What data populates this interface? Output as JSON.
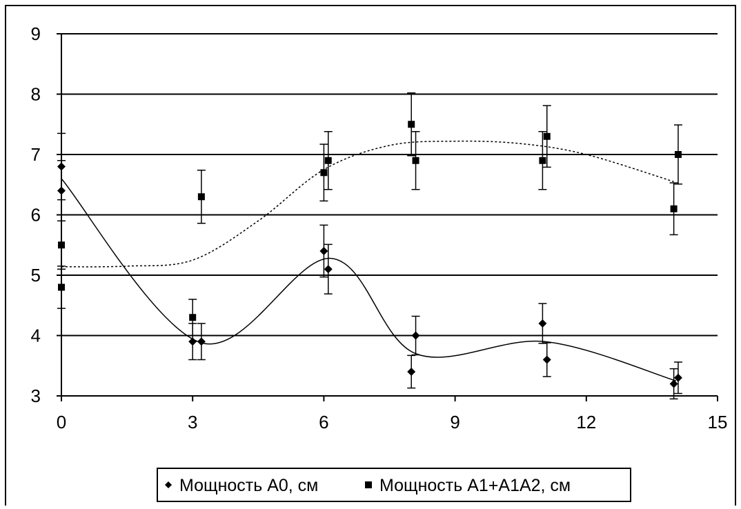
{
  "chart_data": {
    "type": "scatter",
    "title": "",
    "xlabel": "",
    "ylabel": "",
    "xlim": [
      0,
      15
    ],
    "ylim": [
      3,
      9
    ],
    "xticks": [
      "0",
      "3",
      "6",
      "9",
      "12",
      "15"
    ],
    "yticks": [
      "3",
      "4",
      "5",
      "6",
      "7",
      "8",
      "9"
    ],
    "grid": "horizontal",
    "legend_position": "bottom",
    "series": [
      {
        "name": "Мощность А0, см",
        "marker": "diamond",
        "trend_style": "solid",
        "color": "#000000",
        "points": [
          {
            "x": 0,
            "y": 6.8,
            "err": 0.55
          },
          {
            "x": 0,
            "y": 6.4,
            "err": 0.5
          },
          {
            "x": 3,
            "y": 3.9,
            "err": 0.3
          },
          {
            "x": 3.2,
            "y": 3.9,
            "err": 0.3
          },
          {
            "x": 6,
            "y": 5.4,
            "err": 0.43
          },
          {
            "x": 6.1,
            "y": 5.1,
            "err": 0.41
          },
          {
            "x": 8,
            "y": 3.4,
            "err": 0.27
          },
          {
            "x": 8.1,
            "y": 4.0,
            "err": 0.32
          },
          {
            "x": 11,
            "y": 4.2,
            "err": 0.33
          },
          {
            "x": 11.1,
            "y": 3.6,
            "err": 0.28
          },
          {
            "x": 14,
            "y": 3.2,
            "err": 0.25
          },
          {
            "x": 14.1,
            "y": 3.3,
            "err": 0.26
          }
        ],
        "trend": [
          {
            "x": 0,
            "y": 6.6
          },
          {
            "x": 3.2,
            "y": 3.88
          },
          {
            "x": 6.15,
            "y": 5.28
          },
          {
            "x": 8.1,
            "y": 3.7
          },
          {
            "x": 11.05,
            "y": 3.9
          },
          {
            "x": 14.05,
            "y": 3.25
          }
        ]
      },
      {
        "name": "Мощность А1+А1А2, см",
        "marker": "square",
        "trend_style": "dotted",
        "color": "#000000",
        "points": [
          {
            "x": 0,
            "y": 5.5,
            "err": 0.4
          },
          {
            "x": 0,
            "y": 4.8,
            "err": 0.35
          },
          {
            "x": 3,
            "y": 4.3,
            "err": 0.3
          },
          {
            "x": 3.2,
            "y": 6.3,
            "err": 0.44
          },
          {
            "x": 6,
            "y": 6.7,
            "err": 0.47
          },
          {
            "x": 6.1,
            "y": 6.9,
            "err": 0.48
          },
          {
            "x": 8,
            "y": 7.5,
            "err": 0.52
          },
          {
            "x": 8.1,
            "y": 6.9,
            "err": 0.48
          },
          {
            "x": 11,
            "y": 6.9,
            "err": 0.48
          },
          {
            "x": 11.1,
            "y": 7.3,
            "err": 0.51
          },
          {
            "x": 14,
            "y": 6.1,
            "err": 0.43
          },
          {
            "x": 14.1,
            "y": 7.0,
            "err": 0.49
          }
        ],
        "trend": [
          {
            "x": 0,
            "y": 5.14
          },
          {
            "x": 1.5,
            "y": 5.15
          },
          {
            "x": 3,
            "y": 5.25
          },
          {
            "x": 4.5,
            "y": 5.9
          },
          {
            "x": 6,
            "y": 6.75
          },
          {
            "x": 7.5,
            "y": 7.15
          },
          {
            "x": 9,
            "y": 7.22
          },
          {
            "x": 10.5,
            "y": 7.18
          },
          {
            "x": 12,
            "y": 7.0
          },
          {
            "x": 14,
            "y": 6.55
          }
        ]
      }
    ]
  }
}
